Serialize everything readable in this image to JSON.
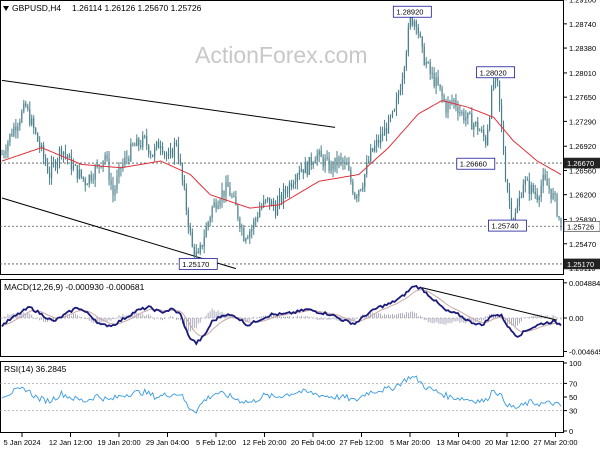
{
  "header": {
    "symbol": "GBPUSD,H4",
    "ohlc": "1.26114 1.26126 1.25670 1.25726",
    "watermark": "ActionForex.com"
  },
  "colors": {
    "candle": "#4a7f8a",
    "ema": "#e0303a",
    "trendline": "#000000",
    "macd_line": "#1a1a7a",
    "macd_signal": "#c9a8a8",
    "macd_hist": "#9a9ab0",
    "rsi": "#3a9be0",
    "label_border": "#1a1a9a"
  },
  "chart_data": [
    {
      "name": "price",
      "type": "candlestick",
      "ylim": [
        1.2505,
        1.2905
      ],
      "y_ticks": [
        "1.29100",
        "1.28740",
        "1.28380",
        "1.28010",
        "1.27650",
        "1.27290",
        "1.26920",
        "1.26560",
        "1.26200",
        "1.25830",
        "1.25470",
        "1.25110"
      ],
      "x_ticks": [
        "5 Jan 2024",
        "12 Jan 12:00",
        "19 Jan 20:00",
        "29 Jan 04:00",
        "5 Feb 12:00",
        "12 Feb 20:00",
        "20 Feb 04:00",
        "27 Feb 12:00",
        "5 Mar 20:00",
        "13 Mar 04:00",
        "20 Mar 12:00",
        "27 Mar 20:00"
      ],
      "close_anchors": [
        [
          0,
          1.268
        ],
        [
          6,
          1.272
        ],
        [
          12,
          1.275
        ],
        [
          18,
          1.27
        ],
        [
          24,
          1.265
        ],
        [
          30,
          1.269
        ],
        [
          36,
          1.266
        ],
        [
          42,
          1.264
        ],
        [
          48,
          1.266
        ],
        [
          52,
          1.268
        ],
        [
          56,
          1.262
        ],
        [
          60,
          1.266
        ],
        [
          66,
          1.269
        ],
        [
          72,
          1.27
        ],
        [
          76,
          1.268
        ],
        [
          80,
          1.27
        ],
        [
          84,
          1.267
        ],
        [
          88,
          1.27
        ],
        [
          92,
          1.262
        ],
        [
          96,
          1.254
        ],
        [
          99,
          1.2525
        ],
        [
          102,
          1.256
        ],
        [
          106,
          1.26
        ],
        [
          110,
          1.262
        ],
        [
          114,
          1.263
        ],
        [
          118,
          1.26
        ],
        [
          122,
          1.256
        ],
        [
          126,
          1.257
        ],
        [
          130,
          1.26
        ],
        [
          134,
          1.261
        ],
        [
          138,
          1.26
        ],
        [
          142,
          1.262
        ],
        [
          146,
          1.264
        ],
        [
          150,
          1.266
        ],
        [
          154,
          1.266
        ],
        [
          158,
          1.268
        ],
        [
          162,
          1.267
        ],
        [
          166,
          1.266
        ],
        [
          170,
          1.267
        ],
        [
          174,
          1.266
        ],
        [
          178,
          1.262
        ],
        [
          182,
          1.264
        ],
        [
          186,
          1.268
        ],
        [
          190,
          1.27
        ],
        [
          194,
          1.272
        ],
        [
          198,
          1.274
        ],
        [
          202,
          1.28
        ],
        [
          206,
          1.288
        ],
        [
          209,
          1.288
        ],
        [
          212,
          1.283
        ],
        [
          216,
          1.28
        ],
        [
          220,
          1.278
        ],
        [
          224,
          1.275
        ],
        [
          228,
          1.276
        ],
        [
          232,
          1.274
        ],
        [
          236,
          1.273
        ],
        [
          240,
          1.272
        ],
        [
          244,
          1.27
        ],
        [
          248,
          1.279
        ],
        [
          250,
          1.278
        ],
        [
          252,
          1.272
        ],
        [
          254,
          1.265
        ],
        [
          256,
          1.261
        ],
        [
          258,
          1.258
        ],
        [
          260,
          1.26
        ],
        [
          263,
          1.264
        ],
        [
          266,
          1.263
        ],
        [
          270,
          1.262
        ],
        [
          273,
          1.264
        ],
        [
          276,
          1.263
        ],
        [
          279,
          1.261
        ],
        [
          282,
          1.2573
        ]
      ],
      "ema": [
        [
          0,
          1.267
        ],
        [
          20,
          1.269
        ],
        [
          40,
          1.2665
        ],
        [
          60,
          1.266
        ],
        [
          80,
          1.267
        ],
        [
          95,
          1.265
        ],
        [
          105,
          1.262
        ],
        [
          125,
          1.26
        ],
        [
          140,
          1.2605
        ],
        [
          160,
          1.264
        ],
        [
          180,
          1.265
        ],
        [
          195,
          1.269
        ],
        [
          210,
          1.274
        ],
        [
          222,
          1.276
        ],
        [
          235,
          1.275
        ],
        [
          248,
          1.2735
        ],
        [
          258,
          1.27
        ],
        [
          270,
          1.267
        ],
        [
          282,
          1.265
        ]
      ],
      "trendlines": [
        [
          [
            0,
            1.279
          ],
          [
            168,
            1.272
          ]
        ],
        [
          [
            0,
            1.2615
          ],
          [
            118,
            1.251
          ]
        ]
      ],
      "hlines": [
        1.2667,
        1.2573,
        1.2517
      ],
      "labels": [
        {
          "text": "1.28920",
          "x": 207,
          "y": 1.2892
        },
        {
          "text": "1.28020",
          "x": 249,
          "y": 1.2802
        },
        {
          "text": "1.26660",
          "x": 239,
          "y": 1.2666
        },
        {
          "text": "1.25740",
          "x": 255,
          "y": 1.2574
        },
        {
          "text": "1.25170",
          "x": 99,
          "y": 1.2517
        }
      ],
      "current_tags": [
        {
          "text": "1.26670",
          "y": 1.2667,
          "style": "dark"
        },
        {
          "text": "1.25726",
          "y": 1.2573,
          "style": "light"
        },
        {
          "text": "1.25170",
          "y": 1.2517,
          "style": "dark"
        }
      ]
    },
    {
      "name": "macd",
      "type": "line",
      "title": "MACD(12,26,9) -0.000930 -0.000681",
      "ylim": [
        -0.005,
        0.005
      ],
      "y_ticks": [
        "0.004884",
        "0.00",
        "-0.004645"
      ],
      "macd_anchors": [
        [
          0,
          -0.001
        ],
        [
          8,
          0.0005
        ],
        [
          14,
          0.0015
        ],
        [
          20,
          0.0005
        ],
        [
          26,
          -0.0005
        ],
        [
          32,
          0.0005
        ],
        [
          38,
          0.0015
        ],
        [
          44,
          0.0005
        ],
        [
          50,
          -0.001
        ],
        [
          56,
          -0.001
        ],
        [
          62,
          0.0
        ],
        [
          68,
          0.001
        ],
        [
          74,
          0.0015
        ],
        [
          80,
          0.0008
        ],
        [
          86,
          0.0012
        ],
        [
          90,
          0.0005
        ],
        [
          94,
          -0.0025
        ],
        [
          98,
          -0.0035
        ],
        [
          102,
          -0.0025
        ],
        [
          106,
          -0.0005
        ],
        [
          112,
          0.0005
        ],
        [
          118,
          0.0002
        ],
        [
          124,
          -0.001
        ],
        [
          130,
          -0.0002
        ],
        [
          136,
          0.0005
        ],
        [
          142,
          0.0005
        ],
        [
          148,
          0.0008
        ],
        [
          154,
          0.0012
        ],
        [
          160,
          0.0008
        ],
        [
          166,
          0.0005
        ],
        [
          172,
          -0.0003
        ],
        [
          178,
          -0.0008
        ],
        [
          184,
          0.0005
        ],
        [
          190,
          0.0015
        ],
        [
          196,
          0.002
        ],
        [
          202,
          0.003
        ],
        [
          208,
          0.0045
        ],
        [
          212,
          0.004
        ],
        [
          218,
          0.0025
        ],
        [
          224,
          0.001
        ],
        [
          230,
          0.0005
        ],
        [
          236,
          -0.0005
        ],
        [
          242,
          -0.001
        ],
        [
          248,
          0.0005
        ],
        [
          252,
          0.0003
        ],
        [
          256,
          -0.0015
        ],
        [
          260,
          -0.0025
        ],
        [
          266,
          -0.0015
        ],
        [
          272,
          -0.0008
        ],
        [
          278,
          -0.0005
        ],
        [
          282,
          -0.0009
        ]
      ],
      "trendline": [
        [
          212,
          0.0042
        ],
        [
          280,
          -0.0003
        ]
      ]
    },
    {
      "name": "rsi",
      "type": "line",
      "title": "RSI(14) 36.2845",
      "ylim": [
        0,
        100
      ],
      "y_ticks": [
        "100",
        "70",
        "50",
        "30",
        "0"
      ],
      "levels": [
        70,
        30
      ],
      "rsi_anchors": [
        [
          0,
          52
        ],
        [
          6,
          58
        ],
        [
          12,
          62
        ],
        [
          18,
          48
        ],
        [
          24,
          44
        ],
        [
          30,
          55
        ],
        [
          36,
          48
        ],
        [
          42,
          44
        ],
        [
          48,
          52
        ],
        [
          54,
          45
        ],
        [
          60,
          52
        ],
        [
          66,
          56
        ],
        [
          72,
          57
        ],
        [
          78,
          50
        ],
        [
          84,
          54
        ],
        [
          90,
          55
        ],
        [
          94,
          35
        ],
        [
          98,
          30
        ],
        [
          102,
          45
        ],
        [
          108,
          56
        ],
        [
          114,
          52
        ],
        [
          120,
          45
        ],
        [
          126,
          42
        ],
        [
          132,
          52
        ],
        [
          138,
          50
        ],
        [
          144,
          54
        ],
        [
          150,
          58
        ],
        [
          156,
          56
        ],
        [
          162,
          52
        ],
        [
          168,
          50
        ],
        [
          174,
          49
        ],
        [
          178,
          44
        ],
        [
          184,
          56
        ],
        [
          190,
          60
        ],
        [
          196,
          62
        ],
        [
          202,
          72
        ],
        [
          206,
          80
        ],
        [
          209,
          77
        ],
        [
          214,
          64
        ],
        [
          220,
          57
        ],
        [
          226,
          50
        ],
        [
          232,
          48
        ],
        [
          238,
          45
        ],
        [
          244,
          44
        ],
        [
          248,
          62
        ],
        [
          252,
          50
        ],
        [
          256,
          36
        ],
        [
          260,
          34
        ],
        [
          266,
          42
        ],
        [
          272,
          40
        ],
        [
          278,
          41
        ],
        [
          282,
          36
        ]
      ]
    }
  ]
}
